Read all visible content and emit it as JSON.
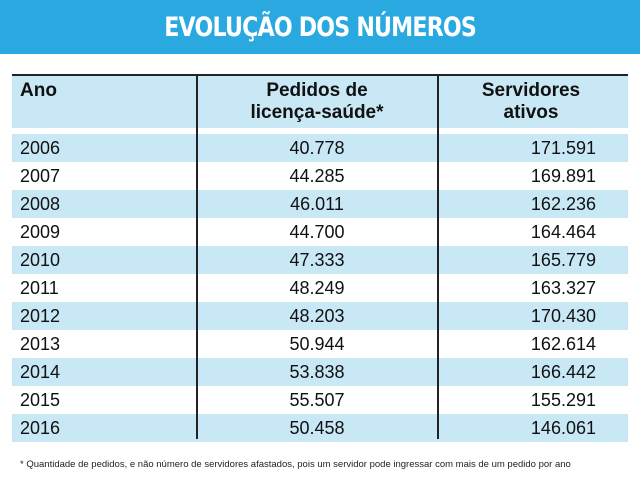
{
  "title": "EVOLUÇÃO DOS NÚMEROS",
  "table": {
    "headers": {
      "ano": "Ano",
      "pedidos_line1": "Pedidos de",
      "pedidos_line2": "licença-saúde*",
      "servidores_line1": "Servidores",
      "servidores_line2": "ativos"
    },
    "rows": [
      {
        "ano": "2006",
        "pedidos": "40.778",
        "servidores": "171.591"
      },
      {
        "ano": "2007",
        "pedidos": "44.285",
        "servidores": "169.891"
      },
      {
        "ano": "2008",
        "pedidos": "46.011",
        "servidores": "162.236"
      },
      {
        "ano": "2009",
        "pedidos": "44.700",
        "servidores": "164.464"
      },
      {
        "ano": "2010",
        "pedidos": "47.333",
        "servidores": "165.779"
      },
      {
        "ano": "2011",
        "pedidos": "48.249",
        "servidores": "163.327"
      },
      {
        "ano": "2012",
        "pedidos": "48.203",
        "servidores": "170.430"
      },
      {
        "ano": "2013",
        "pedidos": "50.944",
        "servidores": "162.614"
      },
      {
        "ano": "2014",
        "pedidos": "53.838",
        "servidores": "166.442"
      },
      {
        "ano": "2015",
        "pedidos": "55.507",
        "servidores": "155.291"
      },
      {
        "ano": "2016",
        "pedidos": "50.458",
        "servidores": "146.061"
      }
    ]
  },
  "footnote": "* Quantidade de pedidos, e não número de servidores afastados, pois um servidor pode ingressar com mais de um pedido por ano",
  "colors": {
    "banner": "#2aa8e0",
    "row_shade": "#c9e8f6",
    "rule": "#222222"
  }
}
